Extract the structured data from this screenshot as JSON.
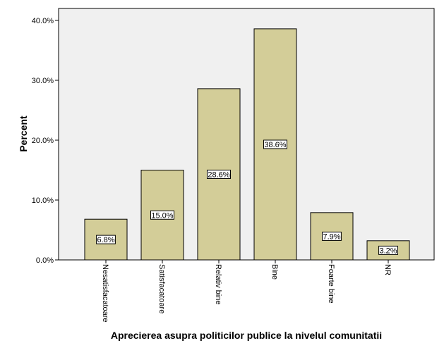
{
  "chart_data": {
    "type": "bar",
    "categories": [
      "Nesatisfacatoare",
      "Satisfacatoare",
      "Relativ bine",
      "Bine",
      "Foarte bine",
      "NR"
    ],
    "values": [
      6.8,
      15.0,
      28.6,
      38.6,
      7.9,
      3.2
    ],
    "data_labels": [
      "6.8%",
      "15.0%",
      "28.6%",
      "38.6%",
      "7.9%",
      "3.2%"
    ],
    "ylabel": "Percent",
    "xlabel": "Aprecierea asupra politicilor publice la nivelul comunitatii",
    "ylim": [
      0,
      42
    ],
    "yticks": [
      0,
      10,
      20,
      30,
      40
    ],
    "ytick_labels": [
      "0.0%",
      "10.0%",
      "20.0%",
      "30.0%",
      "40.0%"
    ],
    "grid": false,
    "colors": {
      "bar_fill": "#d3cd98",
      "bar_stroke": "#000000",
      "plot_background": "#f0f0f0",
      "label_box": "#ffffff"
    }
  }
}
